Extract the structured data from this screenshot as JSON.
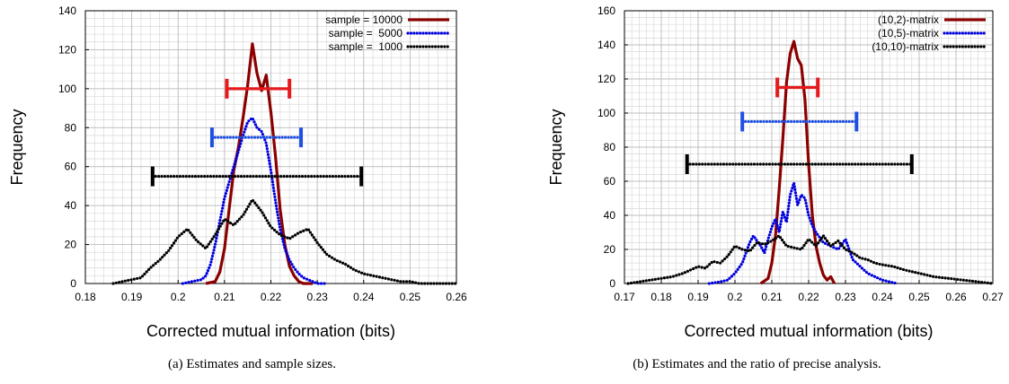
{
  "chart_data": [
    {
      "type": "line",
      "caption": "(a) Estimates and sample sizes.",
      "xlabel": "Corrected mutual information (bits)",
      "ylabel": "Frequency",
      "xlim": [
        0.18,
        0.26
      ],
      "ylim": [
        0,
        140
      ],
      "xticks": [
        0.18,
        0.19,
        0.2,
        0.21,
        0.22,
        0.23,
        0.24,
        0.25,
        0.26
      ],
      "yticks": [
        0,
        20,
        40,
        60,
        80,
        100,
        120,
        140
      ],
      "xtick_labels": [
        "0.18",
        "0.19",
        "0.2",
        "0.21",
        "0.22",
        "0.23",
        "0.24",
        "0.25",
        "0.26"
      ],
      "ytick_labels": [
        "0",
        "20",
        "40",
        "60",
        "80",
        "100",
        "120",
        "140"
      ],
      "grid": true,
      "legend_position": "top-right",
      "series": [
        {
          "name": "sample = 10000",
          "color": "#8b0000",
          "style": "solid",
          "x": [
            0.206,
            0.208,
            0.209,
            0.21,
            0.211,
            0.212,
            0.213,
            0.214,
            0.215,
            0.216,
            0.217,
            0.218,
            0.219,
            0.22,
            0.221,
            0.222,
            0.223,
            0.224,
            0.225,
            0.226,
            0.227,
            0.228,
            0.229
          ],
          "y": [
            0,
            1,
            6,
            18,
            38,
            58,
            70,
            85,
            102,
            123,
            108,
            99,
            107,
            88,
            65,
            38,
            20,
            9,
            4,
            1,
            0,
            0,
            0
          ]
        },
        {
          "name": "sample =  5000",
          "color": "#0000dd",
          "style": "dotted",
          "x": [
            0.201,
            0.203,
            0.205,
            0.206,
            0.207,
            0.208,
            0.209,
            0.21,
            0.211,
            0.212,
            0.213,
            0.214,
            0.215,
            0.216,
            0.217,
            0.218,
            0.219,
            0.22,
            0.221,
            0.222,
            0.223,
            0.224,
            0.225,
            0.226,
            0.227,
            0.228,
            0.229,
            0.23,
            0.232
          ],
          "y": [
            0,
            1,
            2,
            4,
            10,
            20,
            32,
            44,
            52,
            60,
            68,
            76,
            83,
            85,
            80,
            78,
            72,
            58,
            42,
            28,
            18,
            12,
            8,
            5,
            3,
            2,
            1,
            0,
            0
          ]
        },
        {
          "name": "sample =  1000",
          "color": "#000000",
          "style": "dotted",
          "x": [
            0.186,
            0.188,
            0.19,
            0.192,
            0.194,
            0.196,
            0.198,
            0.2,
            0.202,
            0.204,
            0.206,
            0.208,
            0.21,
            0.212,
            0.214,
            0.216,
            0.218,
            0.22,
            0.222,
            0.224,
            0.226,
            0.228,
            0.23,
            0.232,
            0.234,
            0.236,
            0.238,
            0.24,
            0.242,
            0.244,
            0.246,
            0.248,
            0.25,
            0.252,
            0.254,
            0.256,
            0.258,
            0.26
          ],
          "y": [
            0,
            1,
            2,
            3,
            8,
            12,
            17,
            24,
            28,
            22,
            18,
            25,
            33,
            30,
            35,
            43,
            37,
            29,
            25,
            23,
            26,
            28,
            21,
            15,
            12,
            10,
            7,
            5,
            4,
            3,
            2,
            1,
            1,
            0,
            0,
            0,
            0,
            0
          ]
        }
      ],
      "error_bars": [
        {
          "series": "sample = 10000",
          "y": 100,
          "xmin": 0.2105,
          "xmax": 0.224,
          "color": "#e41a1c"
        },
        {
          "series": "sample =  5000",
          "y": 75,
          "xmin": 0.2073,
          "xmax": 0.2265,
          "color": "#1f4fe0"
        },
        {
          "series": "sample =  1000",
          "y": 55,
          "xmin": 0.1945,
          "xmax": 0.2395,
          "color": "#000000"
        }
      ]
    },
    {
      "type": "line",
      "caption": "(b) Estimates and the ratio of precise analysis.",
      "xlabel": "Corrected mutual information (bits)",
      "ylabel": "Frequency",
      "xlim": [
        0.17,
        0.27
      ],
      "ylim": [
        0,
        160
      ],
      "xticks": [
        0.17,
        0.18,
        0.19,
        0.2,
        0.21,
        0.22,
        0.23,
        0.24,
        0.25,
        0.26,
        0.27
      ],
      "yticks": [
        0,
        20,
        40,
        60,
        80,
        100,
        120,
        140,
        160
      ],
      "xtick_labels": [
        "0.17",
        "0.18",
        "0.19",
        "0.2",
        "0.21",
        "0.22",
        "0.23",
        "0.24",
        "0.25",
        "0.26",
        "0.27"
      ],
      "ytick_labels": [
        "0",
        "20",
        "40",
        "60",
        "80",
        "100",
        "120",
        "140",
        "160"
      ],
      "grid": true,
      "legend_position": "top-right",
      "series": [
        {
          "name": "(10,2)-matrix",
          "color": "#8b0000",
          "style": "solid",
          "x": [
            0.207,
            0.209,
            0.21,
            0.211,
            0.212,
            0.213,
            0.214,
            0.215,
            0.216,
            0.217,
            0.218,
            0.219,
            0.22,
            0.221,
            0.222,
            0.223,
            0.224,
            0.225,
            0.226,
            0.227
          ],
          "y": [
            0,
            3,
            12,
            28,
            55,
            85,
            118,
            135,
            142,
            132,
            128,
            108,
            70,
            40,
            22,
            12,
            5,
            2,
            4,
            0
          ]
        },
        {
          "name": "(10,5)-matrix",
          "color": "#0000dd",
          "style": "dotted",
          "x": [
            0.193,
            0.196,
            0.198,
            0.2,
            0.202,
            0.204,
            0.205,
            0.207,
            0.208,
            0.209,
            0.21,
            0.211,
            0.212,
            0.213,
            0.214,
            0.215,
            0.216,
            0.217,
            0.218,
            0.219,
            0.22,
            0.221,
            0.222,
            0.224,
            0.226,
            0.228,
            0.23,
            0.232,
            0.234,
            0.236,
            0.238,
            0.24,
            0.242,
            0.244
          ],
          "y": [
            0,
            1,
            2,
            6,
            12,
            24,
            28,
            22,
            18,
            26,
            33,
            38,
            30,
            42,
            36,
            52,
            59,
            46,
            52,
            50,
            40,
            34,
            30,
            24,
            22,
            20,
            26,
            14,
            10,
            6,
            4,
            2,
            1,
            0
          ]
        },
        {
          "name": "(10,10)-matrix",
          "color": "#000000",
          "style": "dotted",
          "x": [
            0.171,
            0.174,
            0.177,
            0.18,
            0.183,
            0.186,
            0.188,
            0.19,
            0.192,
            0.194,
            0.196,
            0.198,
            0.2,
            0.202,
            0.204,
            0.206,
            0.208,
            0.21,
            0.212,
            0.214,
            0.216,
            0.218,
            0.22,
            0.222,
            0.224,
            0.226,
            0.228,
            0.23,
            0.232,
            0.234,
            0.236,
            0.238,
            0.24,
            0.243,
            0.246,
            0.25,
            0.254,
            0.258,
            0.262,
            0.266,
            0.27
          ],
          "y": [
            0,
            1,
            2,
            3,
            4,
            6,
            8,
            10,
            9,
            13,
            12,
            16,
            22,
            20,
            19,
            24,
            23,
            25,
            28,
            22,
            21,
            20,
            26,
            22,
            28,
            22,
            25,
            20,
            18,
            15,
            14,
            12,
            11,
            10,
            8,
            6,
            4,
            3,
            2,
            1,
            0
          ]
        }
      ],
      "error_bars": [
        {
          "series": "(10,2)-matrix",
          "y": 115,
          "xmin": 0.2115,
          "xmax": 0.2225,
          "color": "#e41a1c"
        },
        {
          "series": "(10,5)-matrix",
          "y": 95,
          "xmin": 0.202,
          "xmax": 0.233,
          "color": "#1f4fe0"
        },
        {
          "series": "(10,10)-matrix",
          "y": 70,
          "xmin": 0.187,
          "xmax": 0.248,
          "color": "#000000"
        }
      ]
    }
  ]
}
